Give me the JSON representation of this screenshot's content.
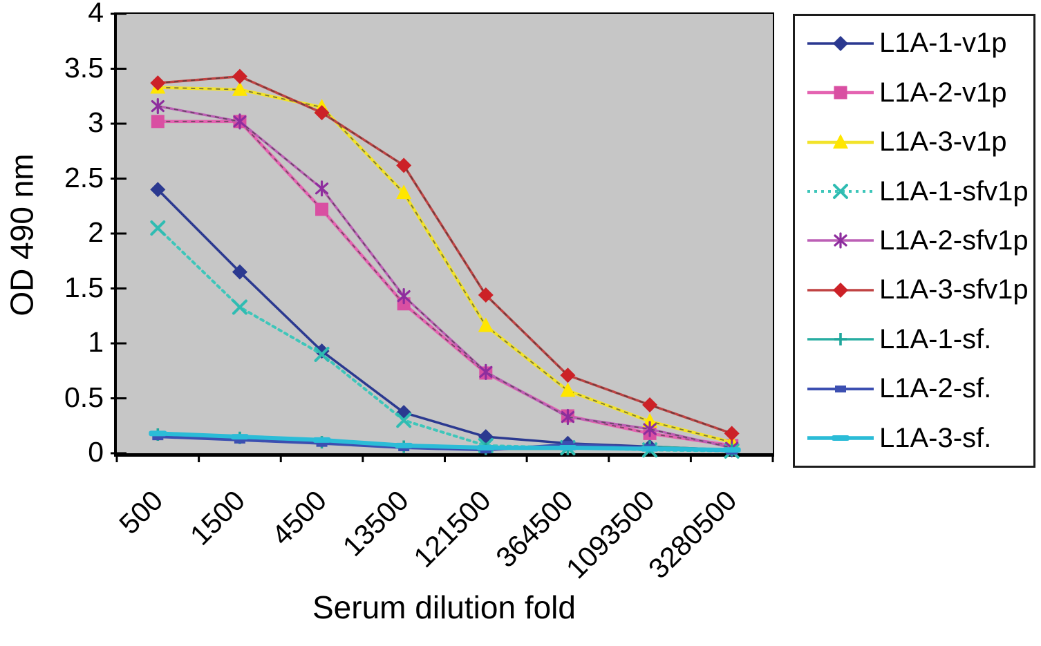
{
  "figure": {
    "plot_background": "#c6c6c6",
    "axis_color": "#000000",
    "text_color": "#000000",
    "legend_border_color": "#1c1c1c"
  },
  "chart_data": {
    "type": "line",
    "title": "",
    "xlabel": "Serum dilution fold",
    "ylabel": "OD 490 nm",
    "categories": [
      "500",
      "1500",
      "4500",
      "13500",
      "121500",
      "364500",
      "1093500",
      "3280500"
    ],
    "ylim": [
      0,
      4
    ],
    "y_ticks": [
      0,
      0.5,
      1,
      1.5,
      2,
      2.5,
      3,
      3.5,
      4
    ],
    "grid": false,
    "legend_position": "right",
    "series": [
      {
        "name": "L1A-1-v1p",
        "marker": "diamond",
        "color": "#2b3990",
        "line_color": "#2b3990",
        "line_width": 3.5,
        "dash": "solid",
        "pattern_overlay": false,
        "values": [
          2.4,
          1.65,
          0.93,
          0.37,
          0.15,
          0.09,
          0.06,
          0.03
        ]
      },
      {
        "name": "L1A-2-v1p",
        "marker": "square",
        "color": "#d94fa2",
        "line_color": "#e463b1",
        "line_width": 4.5,
        "dash": "solid",
        "pattern_overlay": true,
        "values": [
          3.02,
          3.02,
          2.22,
          1.36,
          0.73,
          0.34,
          0.18,
          0.07
        ]
      },
      {
        "name": "L1A-3-v1p",
        "marker": "triangle",
        "color": "#ffe600",
        "line_color": "#f2e32a",
        "line_width": 4.5,
        "dash": "solid",
        "pattern_overlay": true,
        "values": [
          3.33,
          3.31,
          3.15,
          2.37,
          1.16,
          0.57,
          0.29,
          0.1
        ]
      },
      {
        "name": "L1A-1-sfv1p",
        "marker": "x",
        "color": "#2fbcb2",
        "line_color": "#3ec6ba",
        "line_width": 4,
        "dash": "dotted",
        "pattern_overlay": false,
        "values": [
          2.05,
          1.33,
          0.9,
          0.3,
          0.07,
          0.05,
          0.03,
          0.02
        ]
      },
      {
        "name": "L1A-2-sfv1p",
        "marker": "asterisk",
        "color": "#8e2d9e",
        "line_color": "#bc5fb5",
        "line_width": 3.5,
        "dash": "solid",
        "pattern_overlay": true,
        "values": [
          3.16,
          3.02,
          2.41,
          1.43,
          0.74,
          0.33,
          0.22,
          0.05
        ]
      },
      {
        "name": "L1A-3-sfv1p",
        "marker": "diamond",
        "color": "#cc2127",
        "line_color": "#c04343",
        "line_width": 3.5,
        "dash": "solid",
        "pattern_overlay": true,
        "values": [
          3.37,
          3.43,
          3.1,
          2.62,
          1.44,
          0.71,
          0.44,
          0.18
        ]
      },
      {
        "name": "L1A-1-sf.",
        "marker": "plus",
        "color": "#1fa79c",
        "line_color": "#28ada2",
        "line_width": 3.5,
        "dash": "solid",
        "pattern_overlay": false,
        "values": [
          0.17,
          0.14,
          0.1,
          0.06,
          0.04,
          0.04,
          0.06,
          0.03
        ]
      },
      {
        "name": "L1A-2-sf.",
        "marker": "vrect",
        "color": "#3c4fb1",
        "line_color": "#3c4fb1",
        "line_width": 4,
        "dash": "solid",
        "pattern_overlay": false,
        "values": [
          0.15,
          0.12,
          0.09,
          0.05,
          0.03,
          0.08,
          0.05,
          0.02
        ]
      },
      {
        "name": "L1A-3-sf.",
        "marker": "hdash",
        "color": "#2bbcd7",
        "line_color": "#2bbcd7",
        "line_width": 6,
        "dash": "solid",
        "pattern_overlay": false,
        "values": [
          0.18,
          0.15,
          0.12,
          0.07,
          0.05,
          0.05,
          0.04,
          0.03
        ]
      }
    ]
  }
}
